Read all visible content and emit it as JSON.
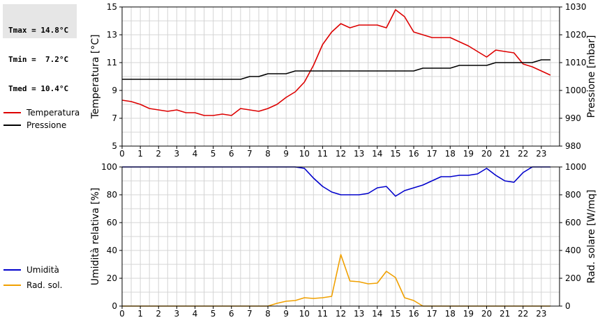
{
  "stats": {
    "tmax": "Tmax = 14.8°C",
    "tmin": "Tmin =  7.2°C",
    "tmed": "Tmed = 10.4°C"
  },
  "legend_top": [
    {
      "label": "Temperatura",
      "color": "#dd0000"
    },
    {
      "label": "Pressione",
      "color": "#000000"
    }
  ],
  "legend_bottom": [
    {
      "label": "Umidità",
      "color": "#0000cc"
    },
    {
      "label": "Rad. sol.",
      "color": "#f0a000"
    }
  ],
  "chart_data": [
    {
      "type": "line",
      "xlim": [
        0,
        24
      ],
      "xticks": [
        0,
        1,
        2,
        3,
        4,
        5,
        6,
        7,
        8,
        9,
        10,
        11,
        12,
        13,
        14,
        15,
        16,
        17,
        18,
        19,
        20,
        21,
        22,
        23
      ],
      "grid": true,
      "ylabel": "Temperatura [°C]",
      "ylim": [
        5,
        15
      ],
      "yticks": [
        5,
        7,
        9,
        11,
        13,
        15
      ],
      "y2label": "Pressione [mbar]",
      "y2lim": [
        980,
        1030
      ],
      "y2ticks": [
        980,
        990,
        1000,
        1010,
        1020,
        1030
      ],
      "series": [
        {
          "name": "Temperatura",
          "axis": "left",
          "color": "#dd0000",
          "x": [
            0,
            0.5,
            1,
            1.5,
            2,
            2.5,
            3,
            3.5,
            4,
            4.5,
            5,
            5.5,
            6,
            6.5,
            7,
            7.5,
            8,
            8.5,
            9,
            9.5,
            10,
            10.5,
            11,
            11.5,
            12,
            12.5,
            13,
            13.5,
            14,
            14.5,
            15,
            15.5,
            16,
            16.5,
            17,
            17.5,
            18,
            18.5,
            19,
            19.5,
            20,
            20.5,
            21,
            21.5,
            22,
            22.5,
            23,
            23.5
          ],
          "y": [
            8.3,
            8.2,
            8.0,
            7.7,
            7.6,
            7.5,
            7.6,
            7.4,
            7.4,
            7.2,
            7.2,
            7.3,
            7.2,
            7.7,
            7.6,
            7.5,
            7.7,
            8.0,
            8.5,
            8.9,
            9.6,
            10.8,
            12.3,
            13.2,
            13.8,
            13.5,
            13.7,
            13.7,
            13.7,
            13.5,
            14.8,
            14.3,
            13.2,
            13.0,
            12.8,
            12.8,
            12.8,
            12.5,
            12.2,
            11.8,
            11.4,
            11.9,
            11.8,
            11.7,
            10.9,
            10.7,
            10.4,
            10.1
          ]
        },
        {
          "name": "Pressione",
          "axis": "right",
          "color": "#000000",
          "x": [
            0,
            0.5,
            1,
            1.5,
            2,
            2.5,
            3,
            3.5,
            4,
            4.5,
            5,
            5.5,
            6,
            6.5,
            7,
            7.5,
            8,
            8.5,
            9,
            9.5,
            10,
            10.5,
            11,
            11.5,
            12,
            12.5,
            13,
            13.5,
            14,
            14.5,
            15,
            15.5,
            16,
            16.5,
            17,
            17.5,
            18,
            18.5,
            19,
            19.5,
            20,
            20.5,
            21,
            21.5,
            22,
            22.5,
            23,
            23.5
          ],
          "y": [
            1004,
            1004,
            1004,
            1004,
            1004,
            1004,
            1004,
            1004,
            1004,
            1004,
            1004,
            1004,
            1004,
            1004,
            1005,
            1005,
            1006,
            1006,
            1006,
            1007,
            1007,
            1007,
            1007,
            1007,
            1007,
            1007,
            1007,
            1007,
            1007,
            1007,
            1007,
            1007,
            1007,
            1008,
            1008,
            1008,
            1008,
            1009,
            1009,
            1009,
            1009,
            1010,
            1010,
            1010,
            1010,
            1010,
            1011,
            1011
          ]
        }
      ]
    },
    {
      "type": "line",
      "xlim": [
        0,
        24
      ],
      "xticks": [
        0,
        1,
        2,
        3,
        4,
        5,
        6,
        7,
        8,
        9,
        10,
        11,
        12,
        13,
        14,
        15,
        16,
        17,
        18,
        19,
        20,
        21,
        22,
        23
      ],
      "grid": true,
      "ylabel": "Umidità relativa [%]",
      "ylim": [
        0,
        100
      ],
      "yticks": [
        0,
        20,
        40,
        60,
        80,
        100
      ],
      "y2label": "Rad. solare [W/mq]",
      "y2lim": [
        0,
        1000
      ],
      "y2ticks": [
        0,
        200,
        400,
        600,
        800,
        1000
      ],
      "series": [
        {
          "name": "Umidità",
          "axis": "left",
          "color": "#0000cc",
          "x": [
            0,
            0.5,
            1,
            1.5,
            2,
            2.5,
            3,
            3.5,
            4,
            4.5,
            5,
            5.5,
            6,
            6.5,
            7,
            7.5,
            8,
            8.5,
            9,
            9.5,
            10,
            10.5,
            11,
            11.5,
            12,
            12.5,
            13,
            13.5,
            14,
            14.5,
            15,
            15.5,
            16,
            16.5,
            17,
            17.5,
            18,
            18.5,
            19,
            19.5,
            20,
            20.5,
            21,
            21.5,
            22,
            22.5,
            23,
            23.5
          ],
          "y": [
            100,
            100,
            100,
            100,
            100,
            100,
            100,
            100,
            100,
            100,
            100,
            100,
            100,
            100,
            100,
            100,
            100,
            100,
            100,
            100,
            99,
            92,
            86,
            82,
            80,
            80,
            80,
            81,
            85,
            86,
            79,
            83,
            85,
            87,
            90,
            93,
            93,
            94,
            94,
            95,
            99,
            94,
            90,
            89,
            96,
            100,
            100,
            100
          ]
        },
        {
          "name": "Rad. sol.",
          "axis": "right",
          "color": "#f0a000",
          "x": [
            0,
            0.5,
            1,
            1.5,
            2,
            2.5,
            3,
            3.5,
            4,
            4.5,
            5,
            5.5,
            6,
            6.5,
            7,
            7.5,
            8,
            8.5,
            9,
            9.5,
            10,
            10.5,
            11,
            11.5,
            12,
            12.5,
            13,
            13.5,
            14,
            14.5,
            15,
            15.5,
            16,
            16.5,
            17,
            17.5,
            18,
            18.5,
            19,
            19.5,
            20,
            20.5,
            21,
            21.5,
            22,
            22.5,
            23,
            23.5
          ],
          "y": [
            0,
            0,
            0,
            0,
            0,
            0,
            0,
            0,
            0,
            0,
            0,
            0,
            0,
            0,
            0,
            0,
            0,
            20,
            35,
            40,
            60,
            55,
            60,
            70,
            370,
            180,
            175,
            160,
            165,
            250,
            205,
            60,
            40,
            0,
            0,
            0,
            0,
            0,
            0,
            0,
            0,
            0,
            0,
            0,
            0,
            0,
            0,
            0
          ]
        }
      ]
    }
  ]
}
